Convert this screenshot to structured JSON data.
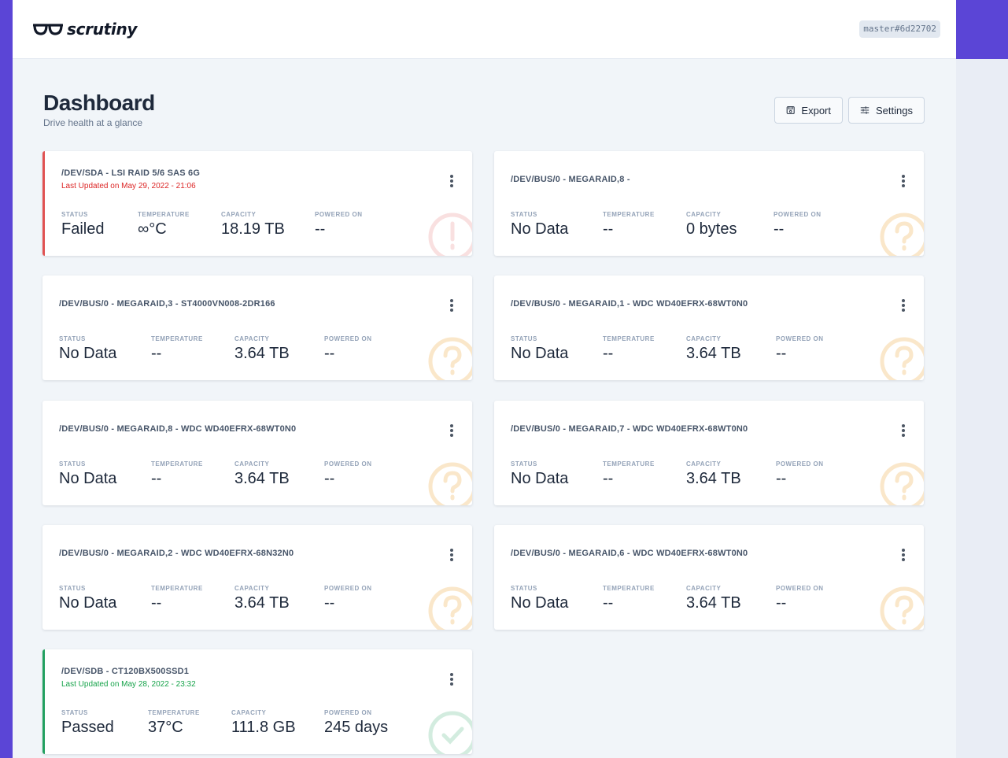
{
  "app": {
    "name": "scrutiny",
    "version": "master#6d22702"
  },
  "page": {
    "title": "Dashboard",
    "subtitle": "Drive health at a glance"
  },
  "actions": {
    "export_label": "Export",
    "settings_label": "Settings"
  },
  "labels": {
    "status": "STATUS",
    "temperature": "TEMPERATURE",
    "capacity": "CAPACITY",
    "powered_on": "POWERED ON"
  },
  "colors": {
    "brand": "#5b45d6",
    "failed": "#e05252",
    "passed": "#22a060",
    "nodata": "#f5c98a"
  },
  "drives": [
    {
      "title": "/DEV/SDA - LSI RAID 5/6 SAS 6G",
      "updated": "Last Updated on May 29, 2022 - 21:06",
      "status": "Failed",
      "temperature": "∞°C",
      "capacity": "18.19 TB",
      "powered_on": "--",
      "state": "failed",
      "icon": "exclamation-icon"
    },
    {
      "title": "/DEV/BUS/0 - MEGARAID,8 -",
      "updated": "",
      "status": "No Data",
      "temperature": "--",
      "capacity": "0 bytes",
      "powered_on": "--",
      "state": "nodata",
      "icon": "question-icon"
    },
    {
      "title": "/DEV/BUS/0 - MEGARAID,3 - ST4000VN008-2DR166",
      "updated": "",
      "status": "No Data",
      "temperature": "--",
      "capacity": "3.64 TB",
      "powered_on": "--",
      "state": "nodata",
      "icon": "question-icon"
    },
    {
      "title": "/DEV/BUS/0 - MEGARAID,1 - WDC WD40EFRX-68WT0N0",
      "updated": "",
      "status": "No Data",
      "temperature": "--",
      "capacity": "3.64 TB",
      "powered_on": "--",
      "state": "nodata",
      "icon": "question-icon"
    },
    {
      "title": "/DEV/BUS/0 - MEGARAID,8 - WDC WD40EFRX-68WT0N0",
      "updated": "",
      "status": "No Data",
      "temperature": "--",
      "capacity": "3.64 TB",
      "powered_on": "--",
      "state": "nodata",
      "icon": "question-icon"
    },
    {
      "title": "/DEV/BUS/0 - MEGARAID,7 - WDC WD40EFRX-68WT0N0",
      "updated": "",
      "status": "No Data",
      "temperature": "--",
      "capacity": "3.64 TB",
      "powered_on": "--",
      "state": "nodata",
      "icon": "question-icon"
    },
    {
      "title": "/DEV/BUS/0 - MEGARAID,2 - WDC WD40EFRX-68N32N0",
      "updated": "",
      "status": "No Data",
      "temperature": "--",
      "capacity": "3.64 TB",
      "powered_on": "--",
      "state": "nodata",
      "icon": "question-icon"
    },
    {
      "title": "/DEV/BUS/0 - MEGARAID,6 - WDC WD40EFRX-68WT0N0",
      "updated": "",
      "status": "No Data",
      "temperature": "--",
      "capacity": "3.64 TB",
      "powered_on": "--",
      "state": "nodata",
      "icon": "question-icon"
    },
    {
      "title": "/DEV/SDB - CT120BX500SSD1",
      "updated": "Last Updated on May 28, 2022 - 23:32",
      "status": "Passed",
      "temperature": "37°C",
      "capacity": "111.8 GB",
      "powered_on": "245 days",
      "state": "passed",
      "icon": "check-icon"
    }
  ]
}
